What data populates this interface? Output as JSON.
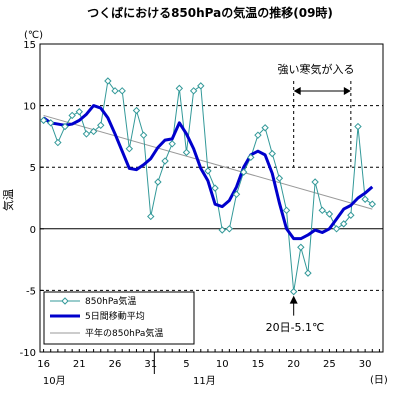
{
  "chart_data": {
    "type": "line",
    "title": "つくばにおける850hPaの気温の推移(09時)",
    "ylabel": "気温",
    "y_unit": "(℃)",
    "x_unit": "(日)",
    "ylim": [
      -10,
      15
    ],
    "yticks": [
      "15",
      "10",
      "5",
      "0",
      "-5",
      "-10"
    ],
    "grid": "dashed horizontal lines at -5, 5 and 10; solid line at 0",
    "x_tick_labels": [
      {
        "day": 16,
        "label": "16"
      },
      {
        "day": 21,
        "label": "21"
      },
      {
        "day": 26,
        "label": "26"
      },
      {
        "day": 31,
        "label": "31"
      },
      {
        "day": 36,
        "label": "5"
      },
      {
        "day": 41,
        "label": "10"
      },
      {
        "day": 46,
        "label": "15"
      },
      {
        "day": 51,
        "label": "20"
      },
      {
        "day": 56,
        "label": "25"
      },
      {
        "day": 61,
        "label": "30"
      }
    ],
    "month_labels": [
      {
        "day": 17.5,
        "label": "10月"
      },
      {
        "day": 38.5,
        "label": "11月"
      }
    ],
    "legend_position": "bottom-left",
    "series": [
      {
        "name": "850hPa気温",
        "color": "#339999",
        "marker": "diamond",
        "x": [
          16,
          17,
          18,
          19,
          20,
          21,
          22,
          23,
          24,
          25,
          26,
          27,
          28,
          29,
          30,
          31,
          32,
          33,
          34,
          35,
          36,
          37,
          38,
          39,
          40,
          41,
          42,
          43,
          44,
          45,
          46,
          47,
          48,
          49,
          50,
          51,
          52,
          53,
          54,
          55,
          56,
          57,
          58,
          59,
          60,
          61,
          62
        ],
        "values": [
          8.8,
          8.6,
          7.0,
          8.3,
          9.2,
          9.5,
          7.7,
          7.9,
          8.4,
          12.0,
          11.2,
          11.2,
          6.5,
          9.6,
          7.6,
          1.0,
          3.8,
          5.5,
          6.9,
          11.4,
          6.2,
          11.2,
          11.6,
          4.7,
          3.3,
          -0.1,
          0.0,
          2.8,
          4.6,
          5.8,
          7.6,
          8.2,
          6.1,
          4.1,
          1.5,
          -5.1,
          -1.5,
          -3.6,
          3.8,
          1.5,
          1.2,
          0.0,
          0.4,
          1.1,
          8.3,
          2.4,
          2.0
        ]
      },
      {
        "name": "5日間移動平均",
        "color": "#0000cc",
        "x": [
          16,
          17,
          18,
          19,
          20,
          21,
          22,
          23,
          24,
          25,
          26,
          27,
          28,
          29,
          30,
          31,
          32,
          33,
          34,
          35,
          36,
          37,
          38,
          39,
          40,
          41,
          42,
          43,
          44,
          45,
          46,
          47,
          48,
          49,
          50,
          51,
          52,
          53,
          54,
          55,
          56,
          57,
          58,
          59,
          60,
          61,
          62
        ],
        "values": [
          9.0,
          8.6,
          8.5,
          8.4,
          8.5,
          8.8,
          9.3,
          10.0,
          9.8,
          9.0,
          7.7,
          6.3,
          4.9,
          4.8,
          5.2,
          5.7,
          6.6,
          7.2,
          7.3,
          8.6,
          7.7,
          6.5,
          4.9,
          3.9,
          2.0,
          1.8,
          2.3,
          3.4,
          5.0,
          6.0,
          6.3,
          6.0,
          4.5,
          2.1,
          0.0,
          -0.8,
          -0.8,
          -0.5,
          -0.1,
          -0.3,
          0.0,
          0.8,
          1.6,
          1.9,
          2.5,
          2.9,
          3.4
        ]
      },
      {
        "name": "平年の850hPa気温",
        "color": "#999999",
        "x": [
          16,
          62
        ],
        "values": [
          9.2,
          1.6
        ]
      }
    ],
    "annotations": {
      "cold_wave_label": "強い寒気が入る",
      "cold_wave_start_day": 51,
      "cold_wave_end_day": 59,
      "min_label": "20日-5.1℃",
      "min_day": 51,
      "min_value": -5.1
    }
  }
}
